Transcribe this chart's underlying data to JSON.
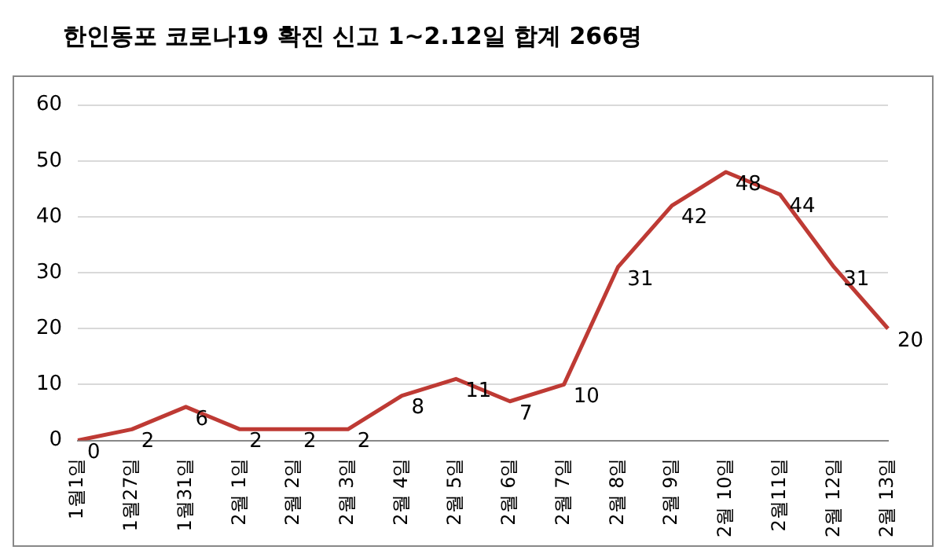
{
  "chart_data": {
    "type": "line",
    "title": "한인동포 코로나19 확진 신고 1~2.12일 합계 266명",
    "categories": [
      "1월1일",
      "1월27일",
      "1월31일",
      "2월 1일",
      "2월 2일",
      "2월 3일",
      "2월 4일",
      "2월 5일",
      "2월 6일",
      "2월 7일",
      "2월 8일",
      "2월 9일",
      "2월 10일",
      "2월11일",
      "2월 12일",
      "2월 13일"
    ],
    "series": [
      {
        "color": "#be3a34",
        "values": [
          0,
          2,
          6,
          2,
          2,
          2,
          8,
          11,
          7,
          10,
          31,
          42,
          48,
          44,
          31,
          20
        ]
      }
    ],
    "ylim": [
      0,
      60
    ],
    "yticks": [
      0,
      10,
      20,
      30,
      40,
      50,
      60
    ],
    "grid": "y",
    "legend": false,
    "marker": "none",
    "line_style": "solid",
    "data_labels": true
  }
}
